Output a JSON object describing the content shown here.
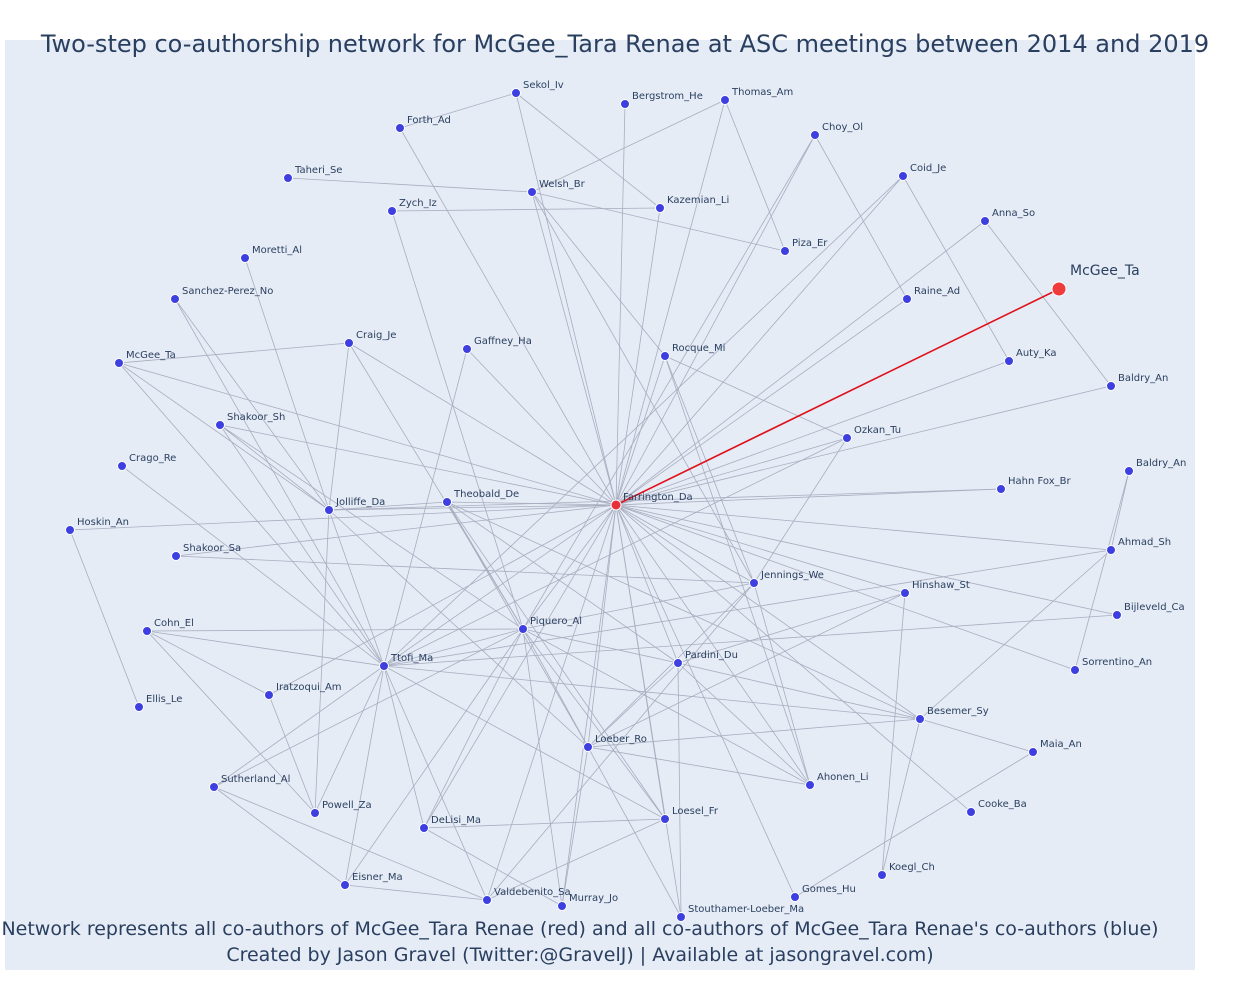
{
  "title": "Two-step co-authorship network for McGee_Tara Renae at ASC meetings between 2014 and 2019",
  "caption_line1": "Network represents all co-authors of McGee_Tara Renae (red) and all co-authors of McGee_Tara Renae's co-authors (blue)",
  "caption_line2": "Created by Jason Gravel (Twitter:@GravelJ) | Available at jasongravel.com)",
  "colors": {
    "focal": "#ef3b3b",
    "red_node": "#e8303a",
    "blue_node": "#3d3fe0",
    "edge": "#a9adbf",
    "focal_edge": "#e0101a",
    "background": "#e5ecf6"
  },
  "chart_data": {
    "type": "network",
    "nodes": [
      {
        "id": "McGee_Ta_focal",
        "label": "McGee_Ta",
        "group": "focal"
      },
      {
        "id": "Farrington_Da",
        "label": "Farrington_Da",
        "group": "red"
      },
      {
        "id": "Sekol_Iv",
        "label": "Sekol_Iv",
        "group": "blue"
      },
      {
        "id": "Bergstrom_He",
        "label": "Bergstrom_He",
        "group": "blue"
      },
      {
        "id": "Thomas_Am",
        "label": "Thomas_Am",
        "group": "blue"
      },
      {
        "id": "Forth_Ad",
        "label": "Forth_Ad",
        "group": "blue"
      },
      {
        "id": "Choy_Ol",
        "label": "Choy_Ol",
        "group": "blue"
      },
      {
        "id": "Taheri_Se",
        "label": "Taheri_Se",
        "group": "blue"
      },
      {
        "id": "Coid_Je",
        "label": "Coid_Je",
        "group": "blue"
      },
      {
        "id": "Welsh_Br",
        "label": "Welsh_Br",
        "group": "blue"
      },
      {
        "id": "Zych_Iz",
        "label": "Zych_Iz",
        "group": "blue"
      },
      {
        "id": "Kazemian_Li",
        "label": "Kazemian_Li",
        "group": "blue"
      },
      {
        "id": "Anna_So",
        "label": "Anna_So",
        "group": "blue"
      },
      {
        "id": "Moretti_Al",
        "label": "Moretti_Al",
        "group": "blue"
      },
      {
        "id": "Piza_Er",
        "label": "Piza_Er",
        "group": "blue"
      },
      {
        "id": "Sanchez-Perez_No",
        "label": "Sanchez-Perez_No",
        "group": "blue"
      },
      {
        "id": "Raine_Ad",
        "label": "Raine_Ad",
        "group": "blue"
      },
      {
        "id": "Craig_Je",
        "label": "Craig_Je",
        "group": "blue"
      },
      {
        "id": "Gaffney_Ha",
        "label": "Gaffney_Ha",
        "group": "blue"
      },
      {
        "id": "Rocque_Mi",
        "label": "Rocque_Mi",
        "group": "blue"
      },
      {
        "id": "McGee_Ta_blue",
        "label": "McGee_Ta",
        "group": "blue"
      },
      {
        "id": "Auty_Ka",
        "label": "Auty_Ka",
        "group": "blue"
      },
      {
        "id": "Baldry_An_1",
        "label": "Baldry_An",
        "group": "blue"
      },
      {
        "id": "Shakoor_Sh",
        "label": "Shakoor_Sh",
        "group": "blue"
      },
      {
        "id": "Ozkan_Tu",
        "label": "Ozkan_Tu",
        "group": "blue"
      },
      {
        "id": "Crago_Re",
        "label": "Crago_Re",
        "group": "blue"
      },
      {
        "id": "Baldry_An_2",
        "label": "Baldry_An",
        "group": "blue"
      },
      {
        "id": "Theobald_De",
        "label": "Theobald_De",
        "group": "blue"
      },
      {
        "id": "Hahn Fox_Br",
        "label": "Hahn Fox_Br",
        "group": "blue"
      },
      {
        "id": "Jolliffe_Da",
        "label": "Jolliffe_Da",
        "group": "blue"
      },
      {
        "id": "Hoskin_An",
        "label": "Hoskin_An",
        "group": "blue"
      },
      {
        "id": "Shakoor_Sa",
        "label": "Shakoor_Sa",
        "group": "blue"
      },
      {
        "id": "Ahmad_Sh",
        "label": "Ahmad_Sh",
        "group": "blue"
      },
      {
        "id": "Jennings_We",
        "label": "Jennings_We",
        "group": "blue"
      },
      {
        "id": "Hinshaw_St",
        "label": "Hinshaw_St",
        "group": "blue"
      },
      {
        "id": "Bijleveld_Ca",
        "label": "Bijleveld_Ca",
        "group": "blue"
      },
      {
        "id": "Cohn_El",
        "label": "Cohn_El",
        "group": "blue"
      },
      {
        "id": "Piquero_Al",
        "label": "Piquero_Al",
        "group": "blue"
      },
      {
        "id": "Pardini_Du",
        "label": "Pardini_Du",
        "group": "blue"
      },
      {
        "id": "Sorrentino_An",
        "label": "Sorrentino_An",
        "group": "blue"
      },
      {
        "id": "Ttofi_Ma",
        "label": "Ttofi_Ma",
        "group": "blue"
      },
      {
        "id": "Iratzoqui_Am",
        "label": "Iratzoqui_Am",
        "group": "blue"
      },
      {
        "id": "Ellis_Le",
        "label": "Ellis_Le",
        "group": "blue"
      },
      {
        "id": "Besemer_Sy",
        "label": "Besemer_Sy",
        "group": "blue"
      },
      {
        "id": "Loeber_Ro",
        "label": "Loeber_Ro",
        "group": "blue"
      },
      {
        "id": "Maia_An",
        "label": "Maia_An",
        "group": "blue"
      },
      {
        "id": "Sutherland_Al",
        "label": "Sutherland_Al",
        "group": "blue"
      },
      {
        "id": "Ahonen_Li",
        "label": "Ahonen_Li",
        "group": "blue"
      },
      {
        "id": "Powell_Za",
        "label": "Powell_Za",
        "group": "blue"
      },
      {
        "id": "Cooke_Ba",
        "label": "Cooke_Ba",
        "group": "blue"
      },
      {
        "id": "DeLisi_Ma",
        "label": "DeLisi_Ma",
        "group": "blue"
      },
      {
        "id": "Loesel_Fr",
        "label": "Loesel_Fr",
        "group": "blue"
      },
      {
        "id": "Koegl_Ch",
        "label": "Koegl_Ch",
        "group": "blue"
      },
      {
        "id": "Eisner_Ma",
        "label": "Eisner_Ma",
        "group": "blue"
      },
      {
        "id": "Gomes_Hu",
        "label": "Gomes_Hu",
        "group": "blue"
      },
      {
        "id": "Valdebenito_Sa",
        "label": "Valdebenito_Sa",
        "group": "blue"
      },
      {
        "id": "Murray_Jo",
        "label": "Murray_Jo",
        "group": "blue"
      },
      {
        "id": "Stouthamer-Loeber_Ma",
        "label": "Stouthamer-Loeber_Ma",
        "group": "blue"
      }
    ],
    "edges": [
      [
        "McGee_Ta_focal",
        "Farrington_Da"
      ],
      [
        "Farrington_Da",
        "Bergstrom_He"
      ],
      [
        "Farrington_Da",
        "Thomas_Am"
      ],
      [
        "Farrington_Da",
        "Forth_Ad"
      ],
      [
        "Farrington_Da",
        "Choy_Ol"
      ],
      [
        "Farrington_Da",
        "Coid_Je"
      ],
      [
        "Farrington_Da",
        "Welsh_Br"
      ],
      [
        "Farrington_Da",
        "Kazemian_Li"
      ],
      [
        "Farrington_Da",
        "Anna_So"
      ],
      [
        "Farrington_Da",
        "Raine_Ad"
      ],
      [
        "Farrington_Da",
        "Gaffney_Ha"
      ],
      [
        "Farrington_Da",
        "Rocque_Mi"
      ],
      [
        "Farrington_Da",
        "Auty_Ka"
      ],
      [
        "Farrington_Da",
        "Baldry_An_1"
      ],
      [
        "Farrington_Da",
        "Ozkan_Tu"
      ],
      [
        "Farrington_Da",
        "Theobald_De"
      ],
      [
        "Farrington_Da",
        "Hahn Fox_Br"
      ],
      [
        "Farrington_Da",
        "Jolliffe_Da"
      ],
      [
        "Farrington_Da",
        "Hoskin_An"
      ],
      [
        "Farrington_Da",
        "Shakoor_Sa"
      ],
      [
        "Farrington_Da",
        "Ahmad_Sh"
      ],
      [
        "Farrington_Da",
        "Jennings_We"
      ],
      [
        "Farrington_Da",
        "Hinshaw_St"
      ],
      [
        "Farrington_Da",
        "Bijleveld_Ca"
      ],
      [
        "Farrington_Da",
        "Piquero_Al"
      ],
      [
        "Farrington_Da",
        "Pardini_Du"
      ],
      [
        "Farrington_Da",
        "Sorrentino_An"
      ],
      [
        "Farrington_Da",
        "Ttofi_Ma"
      ],
      [
        "Farrington_Da",
        "Iratzoqui_Am"
      ],
      [
        "Farrington_Da",
        "Besemer_Sy"
      ],
      [
        "Farrington_Da",
        "Loeber_Ro"
      ],
      [
        "Farrington_Da",
        "Ahonen_Li"
      ],
      [
        "Farrington_Da",
        "Cooke_Ba"
      ],
      [
        "Farrington_Da",
        "DeLisi_Ma"
      ],
      [
        "Farrington_Da",
        "Loesel_Fr"
      ],
      [
        "Farrington_Da",
        "Gomes_Hu"
      ],
      [
        "Farrington_Da",
        "Valdebenito_Sa"
      ],
      [
        "Farrington_Da",
        "Murray_Jo"
      ],
      [
        "Farrington_Da",
        "Stouthamer-Loeber_Ma"
      ],
      [
        "Farrington_Da",
        "Craig_Je"
      ],
      [
        "Farrington_Da",
        "Sekol_Iv"
      ],
      [
        "Farrington_Da",
        "Shakoor_Sh"
      ],
      [
        "Farrington_Da",
        "McGee_Ta_blue"
      ],
      [
        "Sekol_Iv",
        "Forth_Ad"
      ],
      [
        "Sekol_Iv",
        "Kazemian_Li"
      ],
      [
        "Thomas_Am",
        "Welsh_Br"
      ],
      [
        "Thomas_Am",
        "Piza_Er"
      ],
      [
        "Taheri_Se",
        "Welsh_Br"
      ],
      [
        "Welsh_Br",
        "Piza_Er"
      ],
      [
        "Welsh_Br",
        "Rocque_Mi"
      ],
      [
        "Welsh_Br",
        "Jennings_We"
      ],
      [
        "Zych_Iz",
        "Kazemian_Li"
      ],
      [
        "Zych_Iz",
        "Piquero_Al"
      ],
      [
        "Choy_Ol",
        "Raine_Ad"
      ],
      [
        "Choy_Ol",
        "Piquero_Al"
      ],
      [
        "Coid_Je",
        "Ttofi_Ma"
      ],
      [
        "Coid_Je",
        "Auty_Ka"
      ],
      [
        "Anna_So",
        "Baldry_An_1"
      ],
      [
        "Moretti_Al",
        "Jolliffe_Da"
      ],
      [
        "Sanchez-Perez_No",
        "Jolliffe_Da"
      ],
      [
        "Sanchez-Perez_No",
        "Ttofi_Ma"
      ],
      [
        "Craig_Je",
        "McGee_Ta_blue"
      ],
      [
        "Craig_Je",
        "Jolliffe_Da"
      ],
      [
        "Craig_Je",
        "Piquero_Al"
      ],
      [
        "Gaffney_Ha",
        "Ttofi_Ma"
      ],
      [
        "Rocque_Mi",
        "Ozkan_Tu"
      ],
      [
        "Rocque_Mi",
        "Jennings_We"
      ],
      [
        "Rocque_Mi",
        "Ahonen_Li"
      ],
      [
        "McGee_Ta_blue",
        "Jolliffe_Da"
      ],
      [
        "McGee_Ta_blue",
        "Ttofi_Ma"
      ],
      [
        "Shakoor_Sh",
        "Jolliffe_Da"
      ],
      [
        "Shakoor_Sh",
        "Ttofi_Ma"
      ],
      [
        "Shakoor_Sh",
        "Piquero_Al"
      ],
      [
        "Crago_Re",
        "Ttofi_Ma"
      ],
      [
        "Ozkan_Tu",
        "Jennings_We"
      ],
      [
        "Ozkan_Tu",
        "Ttofi_Ma"
      ],
      [
        "Theobald_De",
        "Jolliffe_Da"
      ],
      [
        "Theobald_De",
        "Piquero_Al"
      ],
      [
        "Theobald_De",
        "Pardini_Du"
      ],
      [
        "Theobald_De",
        "Loeber_Ro"
      ],
      [
        "Theobald_De",
        "Loesel_Fr"
      ],
      [
        "Theobald_De",
        "Besemer_Sy"
      ],
      [
        "Hahn Fox_Br",
        "Jolliffe_Da"
      ],
      [
        "Jolliffe_Da",
        "Ttofi_Ma"
      ],
      [
        "Jolliffe_Da",
        "Loeber_Ro"
      ],
      [
        "Jolliffe_Da",
        "Powell_Za"
      ],
      [
        "Hoskin_An",
        "Ellis_Le"
      ],
      [
        "Shakoor_Sa",
        "Jennings_We"
      ],
      [
        "Baldry_An_2",
        "Ahmad_Sh"
      ],
      [
        "Baldry_An_2",
        "Sorrentino_An"
      ],
      [
        "Ahmad_Sh",
        "Ttofi_Ma"
      ],
      [
        "Ahmad_Sh",
        "Besemer_Sy"
      ],
      [
        "Jennings_We",
        "Piquero_Al"
      ],
      [
        "Jennings_We",
        "Ahonen_Li"
      ],
      [
        "Jennings_We",
        "Loeber_Ro"
      ],
      [
        "Hinshaw_St",
        "Loeber_Ro"
      ],
      [
        "Hinshaw_St",
        "Koegl_Ch"
      ],
      [
        "Hinshaw_St",
        "Pardini_Du"
      ],
      [
        "Bijleveld_Ca",
        "Ttofi_Ma"
      ],
      [
        "Cohn_El",
        "Piquero_Al"
      ],
      [
        "Cohn_El",
        "Iratzoqui_Am"
      ],
      [
        "Cohn_El",
        "Powell_Za"
      ],
      [
        "Cohn_El",
        "Ttofi_Ma"
      ],
      [
        "Piquero_Al",
        "Ttofi_Ma"
      ],
      [
        "Piquero_Al",
        "Pardini_Du"
      ],
      [
        "Piquero_Al",
        "Loeber_Ro"
      ],
      [
        "Piquero_Al",
        "Ahonen_Li"
      ],
      [
        "Piquero_Al",
        "Sutherland_Al"
      ],
      [
        "Piquero_Al",
        "Eisner_Ma"
      ],
      [
        "Piquero_Al",
        "Murray_Jo"
      ],
      [
        "Piquero_Al",
        "Loesel_Fr"
      ],
      [
        "Piquero_Al",
        "DeLisi_Ma"
      ],
      [
        "Pardini_Du",
        "Loeber_Ro"
      ],
      [
        "Pardini_Du",
        "Ahonen_Li"
      ],
      [
        "Pardini_Du",
        "Stouthamer-Loeber_Ma"
      ],
      [
        "Pardini_Du",
        "Besemer_Sy"
      ],
      [
        "Ttofi_Ma",
        "Sutherland_Al"
      ],
      [
        "Ttofi_Ma",
        "Loesel_Fr"
      ],
      [
        "Ttofi_Ma",
        "DeLisi_Ma"
      ],
      [
        "Ttofi_Ma",
        "Eisner_Ma"
      ],
      [
        "Ttofi_Ma",
        "Valdebenito_Sa"
      ],
      [
        "Ttofi_Ma",
        "Besemer_Sy"
      ],
      [
        "Ttofi_Ma",
        "Powell_Za"
      ],
      [
        "Iratzoqui_Am",
        "Powell_Za"
      ],
      [
        "Besemer_Sy",
        "Maia_An"
      ],
      [
        "Besemer_Sy",
        "Loeber_Ro"
      ],
      [
        "Besemer_Sy",
        "Koegl_Ch"
      ],
      [
        "Loeber_Ro",
        "Stouthamer-Loeber_Ma"
      ],
      [
        "Loeber_Ro",
        "Ahonen_Li"
      ],
      [
        "Maia_An",
        "Gomes_Hu"
      ],
      [
        "Sutherland_Al",
        "Eisner_Ma"
      ],
      [
        "Sutherland_Al",
        "Valdebenito_Sa"
      ],
      [
        "DeLisi_Ma",
        "Loesel_Fr"
      ],
      [
        "DeLisi_Ma",
        "Murray_Jo"
      ],
      [
        "Loesel_Fr",
        "Valdebenito_Sa"
      ],
      [
        "Eisner_Ma",
        "Valdebenito_Sa"
      ],
      [
        "Valdebenito_Sa",
        "Jennings_We"
      ],
      [
        "Murray_Jo",
        "Loeber_Ro"
      ]
    ]
  }
}
